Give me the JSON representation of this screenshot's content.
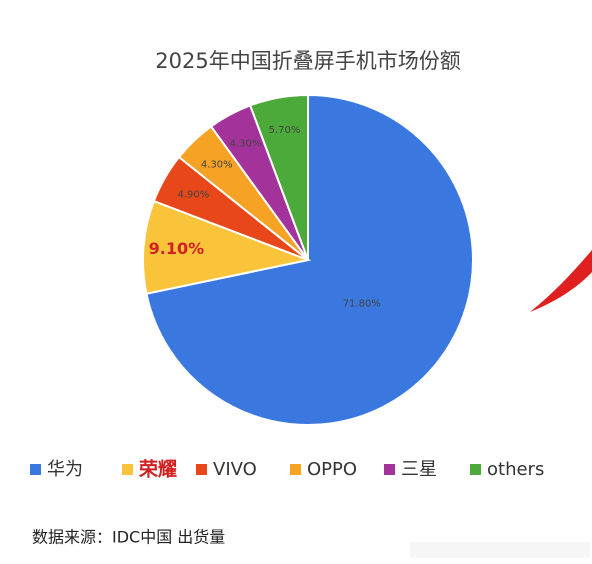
{
  "chart_data": {
    "type": "pie",
    "title": "2025年中国折叠屏手机市场份额",
    "categories": [
      "华为",
      "荣耀",
      "VIVO",
      "OPPO",
      "三星",
      "others"
    ],
    "values": [
      71.8,
      9.1,
      4.9,
      4.3,
      4.3,
      5.7
    ],
    "value_labels": [
      "71.80%",
      "9.10%",
      "4.90%",
      "4.30%",
      "4.30%",
      "5.70%"
    ],
    "colors": [
      "#3a78e0",
      "#f9c43a",
      "#e8471a",
      "#f5a225",
      "#a3339a",
      "#4caa3a"
    ],
    "source": "数据来源：IDC中国 出货量"
  }
}
